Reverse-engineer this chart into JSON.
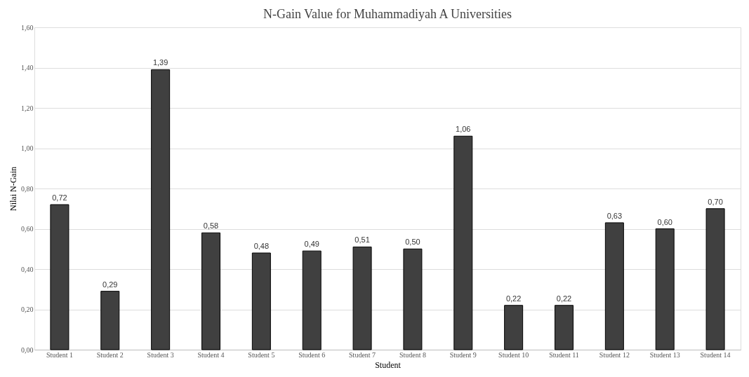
{
  "chart_data": {
    "type": "bar",
    "title": "N-Gain Value for Muhammadiyah A Universities",
    "xlabel": "Student",
    "ylabel": "Nilai N-Gain",
    "categories": [
      "Student 1",
      "Student 2",
      "Student 3",
      "Student 4",
      "Student 5",
      "Student 6",
      "Student 7",
      "Student 8",
      "Student 9",
      "Student 10",
      "Student 11",
      "Student 12",
      "Student 13",
      "Student 14"
    ],
    "values": [
      0.72,
      0.29,
      1.39,
      0.58,
      0.48,
      0.49,
      0.51,
      0.5,
      1.06,
      0.22,
      0.22,
      0.63,
      0.6,
      0.7
    ],
    "value_labels": [
      "0,72",
      "0,29",
      "1,39",
      "0,58",
      "0,48",
      "0,49",
      "0,51",
      "0,50",
      "1,06",
      "0,22",
      "0,22",
      "0,63",
      "0,60",
      "0,70"
    ],
    "color": "#404040",
    "ylim": [
      0,
      1.6
    ],
    "yticks": [
      {
        "value": 0,
        "label": "0,00"
      },
      {
        "value": 0.2,
        "label": "0,20"
      },
      {
        "value": 0.4,
        "label": "0,40"
      },
      {
        "value": 0.6,
        "label": "0,60"
      },
      {
        "value": 0.8,
        "label": "0,80"
      },
      {
        "value": 1.0,
        "label": "1,00"
      },
      {
        "value": 1.2,
        "label": "1,20"
      },
      {
        "value": 1.4,
        "label": "1,40"
      },
      {
        "value": 1.6,
        "label": "1,60"
      }
    ],
    "grid": "y"
  }
}
